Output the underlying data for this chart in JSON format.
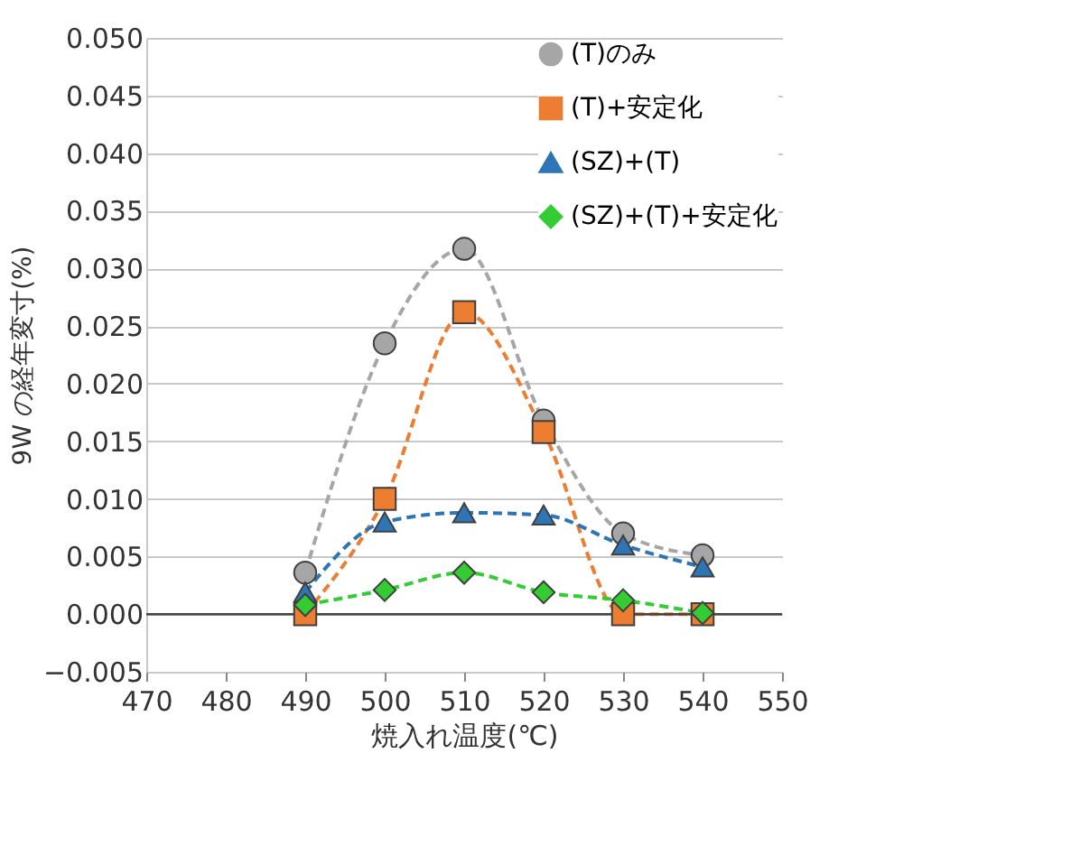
{
  "chart_data": {
    "type": "line",
    "xlabel": "焼入れ温度(℃)",
    "ylabel": "9W の経年変寸(%)",
    "x": [
      490,
      500,
      510,
      520,
      530,
      540
    ],
    "series": [
      {
        "name": "(T)のみ",
        "color": "#a6a6a6",
        "marker": "circle",
        "values": [
          0.0036,
          0.0235,
          0.0317,
          0.0168,
          0.007,
          0.0051
        ]
      },
      {
        "name": "(T)+安定化",
        "color": "#ed7d31",
        "marker": "square",
        "values": [
          0.0,
          0.01,
          0.0262,
          0.0158,
          0.0,
          0.0
        ]
      },
      {
        "name": "(SZ)+(T)",
        "color": "#2e75b6",
        "marker": "triangle",
        "values": [
          0.0019,
          0.008,
          0.0088,
          0.0086,
          0.006,
          0.0041
        ]
      },
      {
        "name": "(SZ)+(T)+安定化",
        "color": "#33cc33",
        "marker": "diamond",
        "values": [
          0.0008,
          0.0021,
          0.0036,
          0.0019,
          0.0012,
          0.0001
        ]
      }
    ],
    "line_style": "dashed",
    "xlim": [
      470,
      550
    ],
    "xticks": [
      470,
      480,
      490,
      500,
      510,
      520,
      530,
      540,
      550
    ],
    "ylim": [
      -0.005,
      0.05
    ],
    "yticks": [
      {
        "value": -0.005,
        "label": "−0.005"
      },
      {
        "value": 0,
        "label": "0.000"
      },
      {
        "value": 0.005,
        "label": "0.005"
      },
      {
        "value": 0.01,
        "label": "0.010"
      },
      {
        "value": 0.015,
        "label": "0.015"
      },
      {
        "value": 0.02,
        "label": "0.020"
      },
      {
        "value": 0.025,
        "label": "0.025"
      },
      {
        "value": 0.03,
        "label": "0.030"
      },
      {
        "value": 0.035,
        "label": "0.035"
      },
      {
        "value": 0.04,
        "label": "0.040"
      },
      {
        "value": 0.045,
        "label": "0.045"
      },
      {
        "value": 0.05,
        "label": "0.050"
      }
    ],
    "ref_lines": [
      {
        "axis": "y",
        "value": 0
      }
    ],
    "grid": "y",
    "legend": "top right"
  }
}
